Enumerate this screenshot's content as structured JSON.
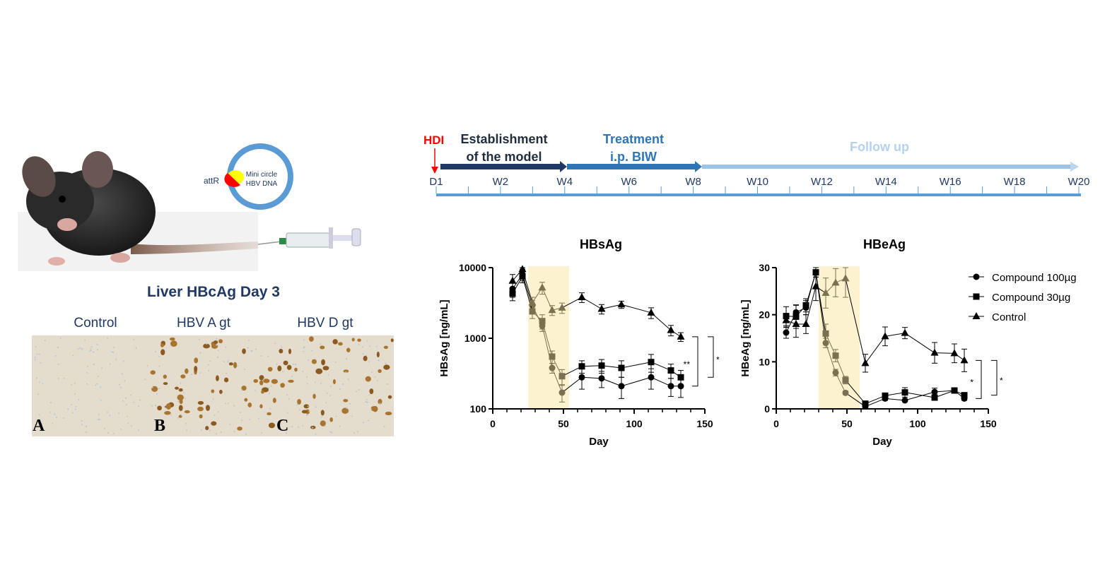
{
  "left_panel": {
    "plasmid": {
      "label_line1": "Mini circle",
      "label_line2": "HBV DNA",
      "site_label": "attR"
    },
    "histology_title": "Liver HBcAg Day 3",
    "columns": [
      "Control",
      "HBV A gt",
      "HBV D gt"
    ],
    "panel_letters": [
      "A",
      "B",
      "C"
    ]
  },
  "timeline": {
    "hdi_label": "HDI",
    "phases": [
      {
        "line1": "Establishment",
        "line2": "of the model",
        "color": "#1f3864"
      },
      {
        "line1": "Treatment",
        "line2": "i.p. BIW",
        "color": "#2e75b6"
      },
      {
        "line1": "Follow up",
        "line2": "",
        "color": "#9dc3e6"
      }
    ],
    "ticks": [
      "D1",
      "W2",
      "W4",
      "W6",
      "W8",
      "W10",
      "W12",
      "W14",
      "W16",
      "W18",
      "W20"
    ]
  },
  "chart_data": [
    {
      "type": "line",
      "title": "HBsAg",
      "xlabel": "Day",
      "ylabel": "HBsAg [ng/mL]",
      "yscale": "log",
      "xlim": [
        0,
        150
      ],
      "ylim": [
        100,
        10000
      ],
      "xticks": [
        "0",
        "50",
        "100",
        "150"
      ],
      "yticks": [
        "100",
        "1000",
        "10000"
      ],
      "treatment_window_days": [
        25,
        54
      ],
      "x": [
        14,
        21,
        28,
        35,
        42,
        49,
        63,
        77,
        91,
        112,
        126,
        133
      ],
      "series": [
        {
          "name": "Compound 100µg",
          "marker": "circle",
          "values": [
            5000,
            8000,
            2900,
            1500,
            380,
            170,
            280,
            270,
            210,
            280,
            210,
            210
          ],
          "errors": [
            1200,
            1500,
            500,
            250,
            60,
            45,
            90,
            70,
            70,
            90,
            60,
            65
          ]
        },
        {
          "name": "Compound 30µg",
          "marker": "square",
          "values": [
            4300,
            7500,
            2400,
            1750,
            550,
            290,
            400,
            410,
            380,
            460,
            350,
            280
          ],
          "errors": [
            900,
            1400,
            500,
            400,
            110,
            70,
            80,
            90,
            100,
            130,
            80,
            70
          ]
        },
        {
          "name": "Control",
          "marker": "triangle",
          "values": [
            6500,
            9500,
            3200,
            5200,
            2500,
            2700,
            3800,
            2600,
            3000,
            2300,
            1300,
            1050
          ],
          "errors": [
            1500,
            800,
            600,
            1000,
            400,
            450,
            600,
            400,
            350,
            400,
            220,
            150
          ]
        }
      ],
      "significance": [
        "**",
        "*"
      ]
    },
    {
      "type": "line",
      "title": "HBeAg",
      "xlabel": "Day",
      "ylabel": "HBeAg [ng/mL]",
      "yscale": "linear",
      "xlim": [
        0,
        150
      ],
      "ylim": [
        0,
        30
      ],
      "xticks": [
        "0",
        "50",
        "100",
        "150"
      ],
      "yticks": [
        "0",
        "10",
        "20",
        "30"
      ],
      "treatment_window_days": [
        30,
        59
      ],
      "x": [
        7,
        14,
        21,
        28,
        35,
        42,
        49,
        63,
        77,
        91,
        112,
        126,
        133
      ],
      "series": [
        {
          "name": "Compound 100µg",
          "marker": "circle",
          "values": [
            16.2,
            20.5,
            21.5,
            29,
            14,
            7.7,
            3.4,
            0.5,
            2.2,
            1.8,
            3.6,
            3.9,
            2.2
          ],
          "errors": [
            1.2,
            1.5,
            1.5,
            1.0,
            1.0,
            0.7,
            0.4,
            0.3,
            0.4,
            0.3,
            0.8,
            0.5,
            0.4
          ]
        },
        {
          "name": "Compound 30µg",
          "marker": "square",
          "values": [
            19.7,
            19.6,
            22,
            29,
            16,
            11.3,
            6.1,
            1.1,
            2.8,
            3.5,
            2.4,
            3.9,
            2.9
          ],
          "errors": [
            2.0,
            2.5,
            1.4,
            1.0,
            2.0,
            1.3,
            0.8,
            0.5,
            0.5,
            1.0,
            0.5,
            0.5,
            0.4
          ]
        },
        {
          "name": "Control",
          "marker": "triangle",
          "values": [
            18.8,
            18,
            18,
            26,
            24.6,
            26.8,
            27.7,
            9.7,
            15.4,
            16.1,
            11.9,
            11.8,
            10.3
          ],
          "errors": [
            1.5,
            2.8,
            2.0,
            3.0,
            3.2,
            3.0,
            4.0,
            1.9,
            2.0,
            1.2,
            2.2,
            2.0,
            2.4
          ]
        }
      ],
      "significance": [
        "*",
        "*"
      ],
      "legend_position": "right"
    }
  ],
  "colors": {
    "treatment_shade": "#fdf2d0",
    "treated_marker": "#7a7150",
    "marker": "#000000",
    "plasmid": "#5b9bd5",
    "title_blue": "#1f3864",
    "hdi_red": "#ff0000"
  }
}
